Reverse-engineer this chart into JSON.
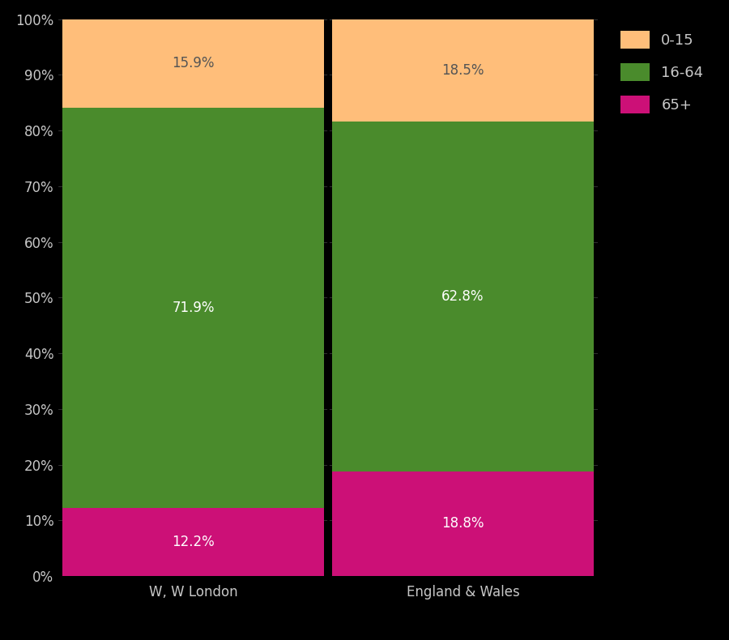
{
  "categories": [
    "W, W London",
    "England & Wales"
  ],
  "segments": {
    "65+": [
      12.2,
      18.8
    ],
    "16-64": [
      71.9,
      62.8
    ],
    "0-15": [
      15.9,
      18.5
    ]
  },
  "colors": {
    "65+": "#CC1077",
    "16-64": "#4A8B2C",
    "0-15": "#FFBE7A"
  },
  "label_colors": {
    "65+": "#FFFFFF",
    "16-64": "#FFFFFF",
    "0-15": "#555555"
  },
  "legend_labels": [
    "0-15",
    "16-64",
    "65+"
  ],
  "background_color": "#000000",
  "text_color": "#C8C8C8",
  "bar_width": 0.97,
  "ylim": [
    0,
    100
  ],
  "yticks": [
    0,
    10,
    20,
    30,
    40,
    50,
    60,
    70,
    80,
    90,
    100
  ],
  "ytick_labels": [
    "0%",
    "10%",
    "20%",
    "30%",
    "40%",
    "50%",
    "60%",
    "70%",
    "80%",
    "90%",
    "100%"
  ],
  "label_fontsize": 12,
  "tick_fontsize": 12,
  "legend_fontsize": 13,
  "separator_color": "#000000",
  "grid_color": "#444444"
}
